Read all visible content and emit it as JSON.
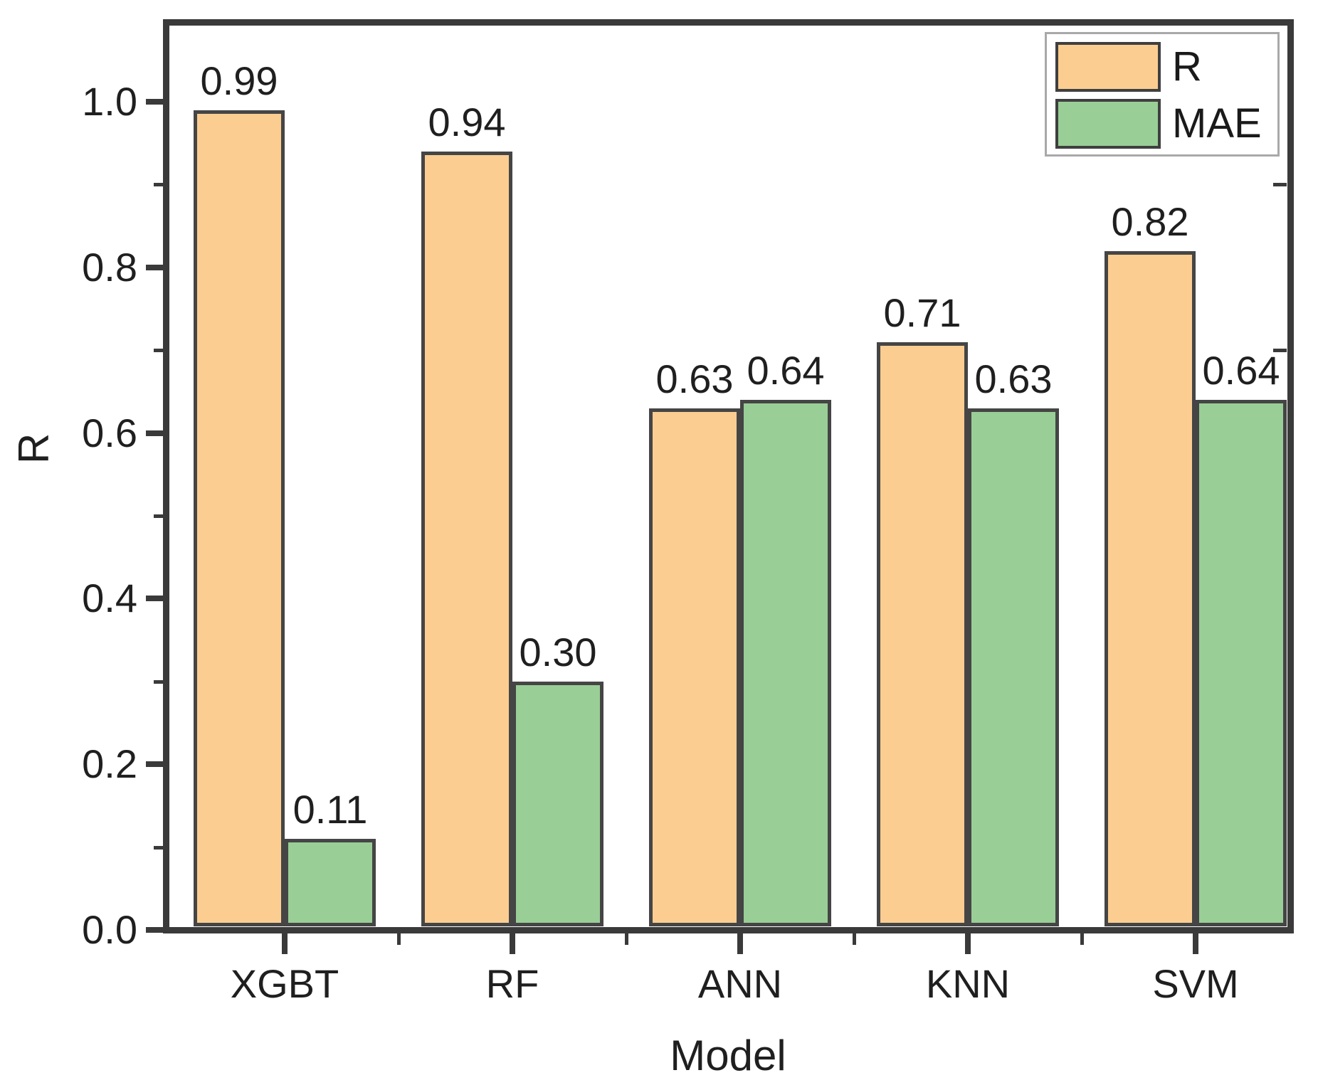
{
  "chart_data": {
    "type": "bar",
    "title": "",
    "xlabel": "Model",
    "ylabel": "R",
    "categories": [
      "XGBT",
      "RF",
      "ANN",
      "KNN",
      "SVM"
    ],
    "series": [
      {
        "name": "R",
        "color": "#FBCD91",
        "values": [
          0.99,
          0.94,
          0.63,
          0.71,
          0.82
        ],
        "labels": [
          "0.99",
          "0.94",
          "0.63",
          "0.71",
          "0.82"
        ]
      },
      {
        "name": "MAE",
        "color": "#99CE96",
        "values": [
          0.11,
          0.3,
          0.64,
          0.63,
          0.64
        ],
        "labels": [
          "0.11",
          "0.30",
          "0.64",
          "0.63",
          "0.64"
        ]
      }
    ],
    "ylim": [
      0,
      1.1
    ],
    "yticks": [
      {
        "value": 0.0,
        "label": "0.0"
      },
      {
        "value": 0.2,
        "label": "0.2"
      },
      {
        "value": 0.4,
        "label": "0.4"
      },
      {
        "value": 0.6,
        "label": "0.6"
      },
      {
        "value": 0.8,
        "label": "0.8"
      },
      {
        "value": 1.0,
        "label": "1.0"
      }
    ],
    "y_minor_ticks": [
      0.1,
      0.3,
      0.5,
      0.7,
      0.9
    ],
    "grid": false,
    "legend_position": "top-right",
    "bar_edge_color": "#454545",
    "axis_color": "#3a3a3a",
    "text_color": "#1f1f1f",
    "legend_border_color": "#a9a9a9"
  },
  "legend": {
    "items": [
      {
        "label": "R"
      },
      {
        "label": "MAE"
      }
    ]
  }
}
